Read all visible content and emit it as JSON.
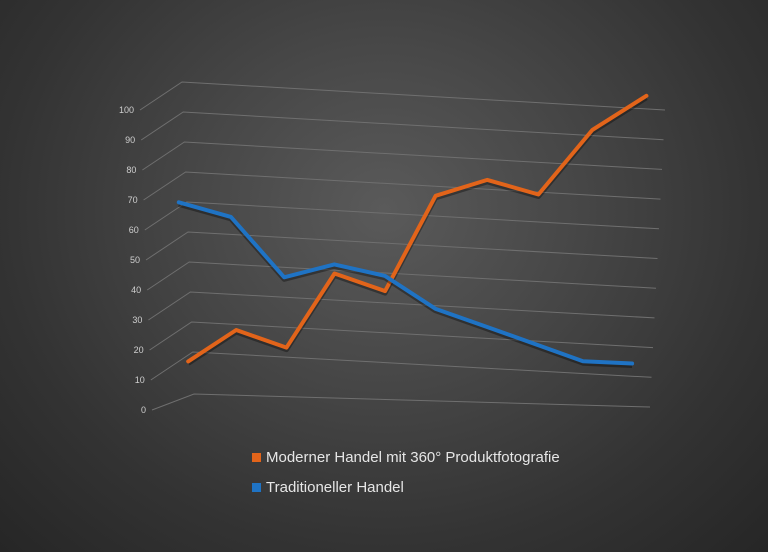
{
  "chart_data": {
    "type": "line",
    "projection": "3d-perspective",
    "ylim": [
      0,
      100
    ],
    "yticks": [
      0,
      10,
      20,
      30,
      40,
      50,
      60,
      70,
      80,
      90,
      100
    ],
    "ytick_labels": [
      "0",
      "10",
      "20",
      "30",
      "40",
      "50",
      "60",
      "70",
      "80",
      "90",
      "100"
    ],
    "x": [
      1,
      2,
      3,
      4,
      5,
      6,
      7,
      8,
      9,
      10,
      11
    ],
    "grid": true,
    "legend_placement": "bottom",
    "series": [
      {
        "name": "Moderner Handel mit 360° Produktfotografie",
        "color": "#e2641a",
        "values": [
          10,
          20,
          14,
          38,
          32,
          63,
          68,
          63,
          84,
          95,
          null
        ]
      },
      {
        "name": "Traditioneller Handel",
        "color": "#1f73c4",
        "values": [
          62,
          57,
          37,
          41,
          37,
          26,
          20,
          14,
          8,
          7,
          null
        ]
      }
    ]
  }
}
